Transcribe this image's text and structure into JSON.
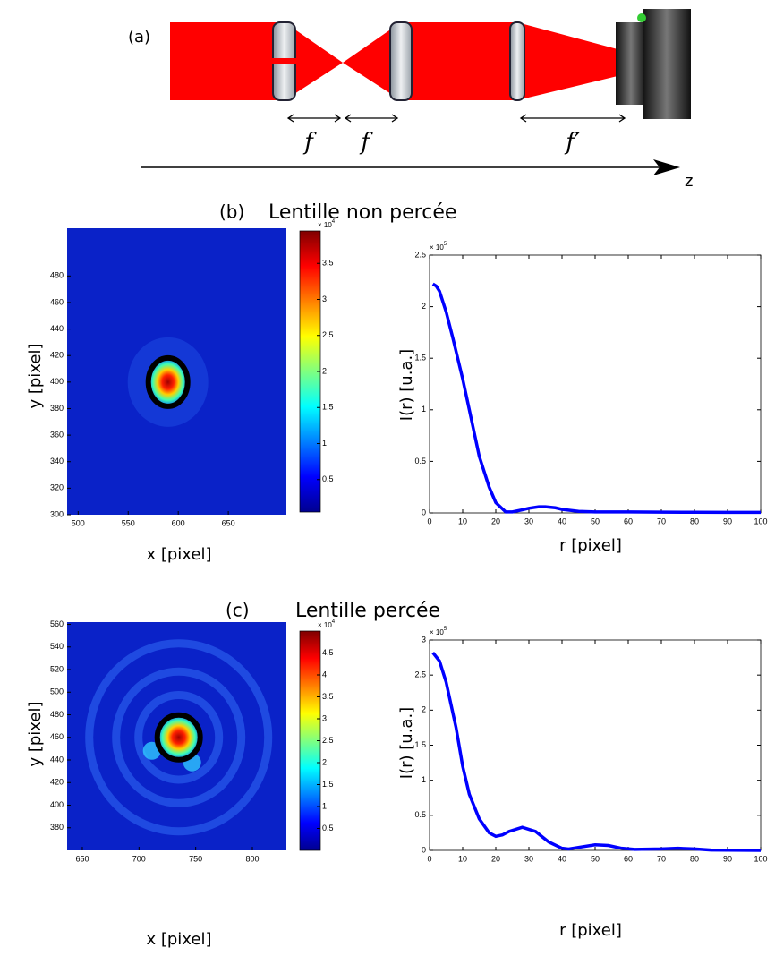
{
  "diagram": {
    "label": "(a)",
    "f1": "f",
    "f2": "f",
    "f3": "f′",
    "axis": "z"
  },
  "chart_data": [
    {
      "type": "heatmap",
      "panel": "(b)",
      "title": "Lentille non percée",
      "xlabel": "x [pixel]",
      "ylabel": "y [pixel]",
      "xlim": [
        489,
        708
      ],
      "ylim": [
        300,
        516
      ],
      "xticks": [
        500,
        550,
        600,
        650
      ],
      "yticks": [
        300,
        320,
        340,
        360,
        380,
        400,
        420,
        440,
        460,
        480
      ],
      "colorbar": {
        "lim": [
          0.05,
          3.95
        ],
        "ticks": [
          0.5,
          1,
          1.5,
          2,
          2.5,
          3,
          3.5
        ],
        "multiplier": "× 10",
        "exponent": "4"
      }
    },
    {
      "type": "line",
      "xlabel": "r [pixel]",
      "ylabel": "I(r) [u.a.]",
      "color": "#0000ff",
      "xlim": [
        0,
        100
      ],
      "ylim": [
        0,
        2.5
      ],
      "xticks": [
        0,
        10,
        20,
        30,
        40,
        50,
        60,
        70,
        80,
        90,
        100
      ],
      "yticks": [
        0,
        0.5,
        1,
        1.5,
        2,
        2.5
      ],
      "multiplier": "× 10",
      "exponent": "5",
      "x": [
        1,
        2,
        3,
        5,
        7,
        10,
        12,
        15,
        18,
        20,
        23,
        25,
        28,
        30,
        33,
        35,
        38,
        40,
        45,
        50,
        60,
        70,
        80,
        90,
        100
      ],
      "values": [
        2.22,
        2.2,
        2.15,
        1.95,
        1.7,
        1.3,
        1.0,
        0.55,
        0.25,
        0.1,
        0.01,
        0.01,
        0.03,
        0.045,
        0.06,
        0.06,
        0.05,
        0.035,
        0.015,
        0.01,
        0.01,
        0.008,
        0.006,
        0.005,
        0.005
      ]
    },
    {
      "type": "heatmap",
      "panel": "(c)",
      "title": "Lentille percée",
      "xlabel": "x [pixel]",
      "ylabel": "y [pixel]",
      "xlim": [
        636.6,
        830
      ],
      "ylim": [
        360,
        562
      ],
      "xticks": [
        650,
        700,
        750,
        800
      ],
      "yticks": [
        380,
        400,
        420,
        440,
        460,
        480,
        500,
        520,
        540,
        560
      ],
      "colorbar": {
        "lim": [
          0,
          5
        ],
        "ticks": [
          0.5,
          1,
          1.5,
          2,
          2.5,
          3,
          3.5,
          4,
          4.5
        ],
        "multiplier": "× 10",
        "exponent": "4"
      }
    },
    {
      "type": "line",
      "xlabel": "r [pixel]",
      "ylabel": "I(r) [u.a.]",
      "color": "#0000ff",
      "xlim": [
        0,
        100
      ],
      "ylim": [
        0,
        3
      ],
      "xticks": [
        0,
        10,
        20,
        30,
        40,
        50,
        60,
        70,
        80,
        90,
        100
      ],
      "yticks": [
        0,
        0.5,
        1,
        1.5,
        2,
        2.5,
        3
      ],
      "multiplier": "× 10",
      "exponent": "5",
      "x": [
        1,
        3,
        5,
        8,
        10,
        12,
        15,
        18,
        20,
        22,
        24,
        28,
        32,
        36,
        40,
        42,
        46,
        50,
        54,
        58,
        62,
        70,
        75,
        80,
        85,
        100
      ],
      "values": [
        2.82,
        2.7,
        2.4,
        1.75,
        1.2,
        0.8,
        0.45,
        0.25,
        0.2,
        0.22,
        0.27,
        0.33,
        0.27,
        0.12,
        0.03,
        0.02,
        0.05,
        0.08,
        0.07,
        0.03,
        0.015,
        0.02,
        0.03,
        0.02,
        0.005,
        0
      ]
    }
  ]
}
